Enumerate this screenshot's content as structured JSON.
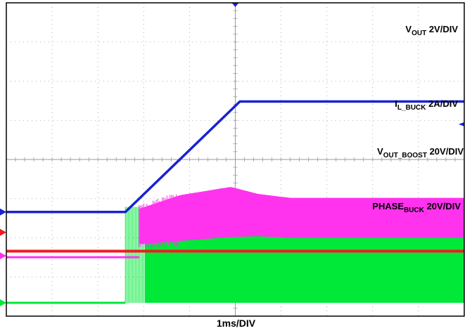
{
  "chart_data": {
    "type": "line",
    "title": "",
    "xlabel": "1ms/DIV",
    "divisions": {
      "horizontal": 10,
      "vertical": 8
    },
    "grid": true,
    "x_unit": "ms",
    "xlim": [
      0,
      10
    ],
    "colors": {
      "vout": "#1a22d0",
      "il": "#ff33ee",
      "vboost": "#ee1c24",
      "phase": "#00e838",
      "grid": "#9a9a9a",
      "frame": "#000000"
    },
    "series": [
      {
        "name_parts": [
          "V",
          "OUT",
          " 2V/DIV"
        ],
        "ground_div": 5.34,
        "x": [
          0,
          2.6,
          5.1,
          10
        ],
        "y_div": [
          0,
          0,
          2.82,
          2.82
        ]
      },
      {
        "name_parts": [
          "I",
          "L_BUCK",
          " 2A/DIV"
        ],
        "ground_div": 6.46,
        "x": [
          0,
          2.9,
          3.8,
          4.9,
          5.5,
          6.2,
          10
        ],
        "y_low_div": [
          0,
          0.3,
          0.38,
          0.48,
          0.5,
          0.46,
          0.46
        ],
        "y_high_div": [
          0,
          1.2,
          1.55,
          1.76,
          1.58,
          1.48,
          1.48
        ]
      },
      {
        "name_parts": [
          "V",
          "OUT_BOOST",
          " 20V/DIV"
        ],
        "ground_div": 6.46,
        "x": [
          0,
          10
        ],
        "y_div": [
          0.12,
          0.12
        ]
      },
      {
        "name_parts": [
          "PHASE",
          "BUCK",
          " 20V/DIV"
        ],
        "ground_div": 7.66,
        "x_start": 2.6,
        "y_low_div": 0,
        "y_high_div": 2.45
      }
    ]
  }
}
